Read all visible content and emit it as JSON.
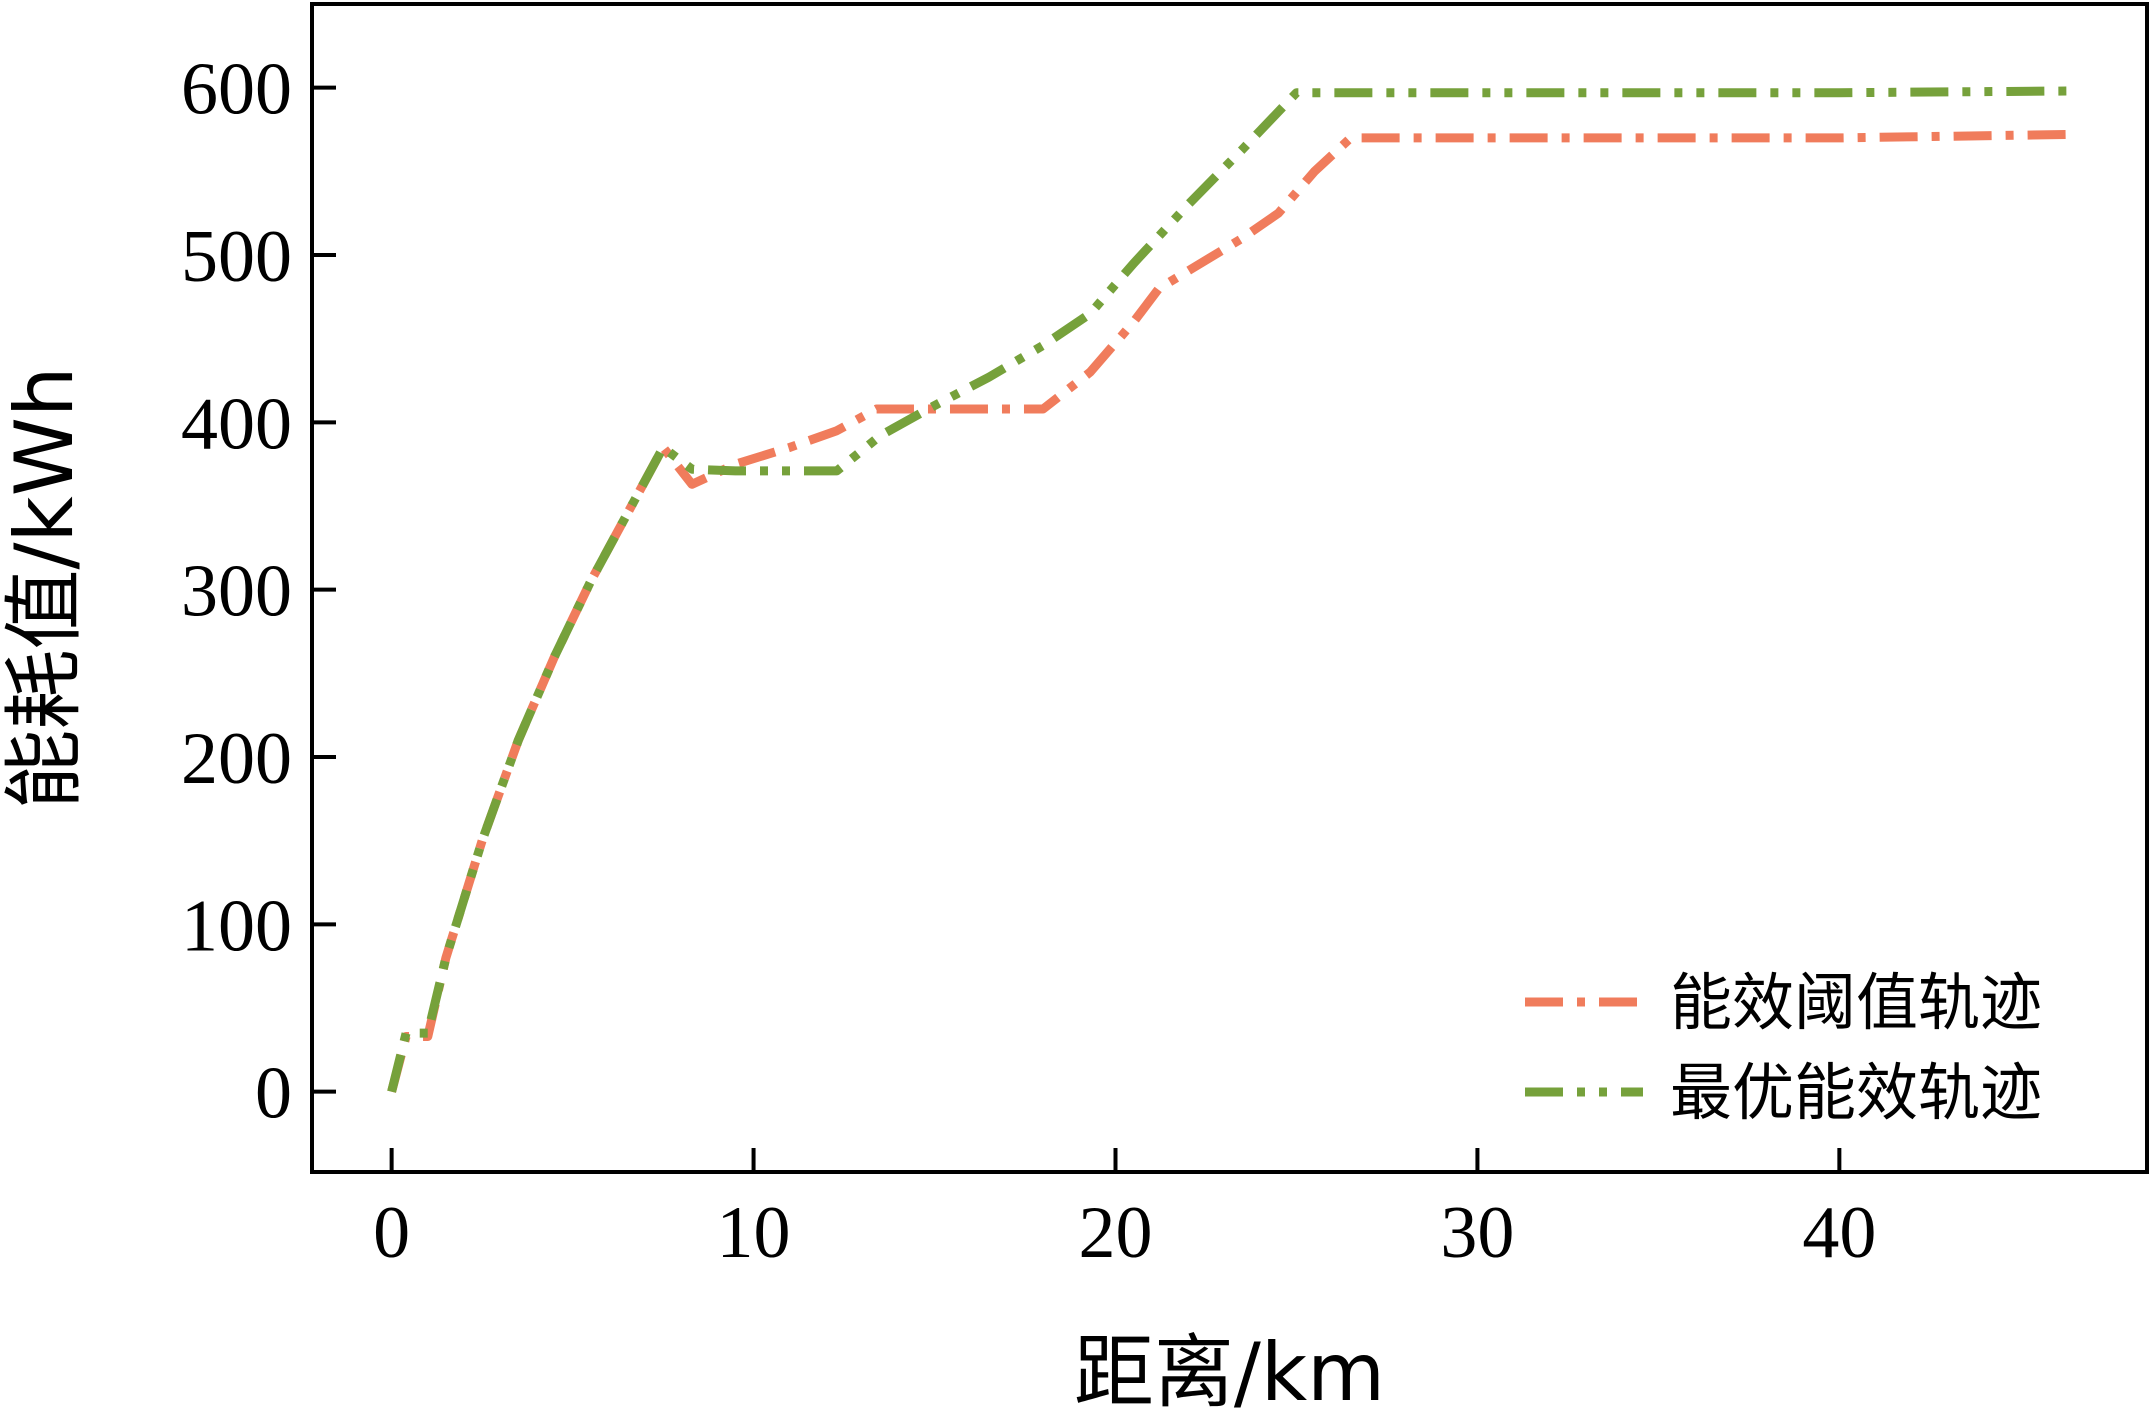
{
  "chart_data": {
    "type": "line",
    "xlabel": "距离/km",
    "ylabel": "能耗值/kWh",
    "xlim": [
      -2.2,
      48.5
    ],
    "ylim": [
      -48,
      650
    ],
    "xticks": [
      0,
      10,
      20,
      30,
      40
    ],
    "yticks": [
      0,
      100,
      200,
      300,
      400,
      500,
      600
    ],
    "grid": false,
    "legend_position": "bottom-right",
    "series": [
      {
        "name": "能效阈值轨迹",
        "color": "#F07C5C",
        "dash": "dash-dot",
        "x": [
          0,
          0.4,
          1.0,
          1.5,
          2.5,
          3.5,
          4.5,
          5.5,
          6.5,
          7.5,
          8.3,
          9.5,
          11.0,
          12.3,
          13.4,
          14.5,
          16.0,
          18.0,
          19.3,
          20.5,
          21.2,
          22.2,
          23.5,
          24.5,
          25.5,
          26.5,
          30,
          35,
          40,
          46.3
        ],
        "y": [
          0,
          33,
          33,
          80,
          150,
          210,
          260,
          305,
          345,
          385,
          363,
          375,
          385,
          395,
          408,
          408,
          408,
          408,
          430,
          460,
          480,
          493,
          510,
          525,
          550,
          570,
          570,
          570,
          570,
          572
        ]
      },
      {
        "name": "最优能效轨迹",
        "color": "#76A13B",
        "dash": "dash-dot-dot",
        "x": [
          0,
          0.4,
          1.0,
          1.5,
          2.5,
          3.5,
          4.5,
          5.5,
          6.5,
          7.5,
          8.3,
          9.5,
          11.0,
          12.3,
          13.5,
          15.0,
          16.5,
          18.0,
          19.3,
          20.5,
          22.0,
          23.5,
          25.0,
          26.5,
          30,
          35,
          40,
          46.3
        ],
        "y": [
          0,
          35,
          35,
          80,
          150,
          210,
          260,
          305,
          345,
          385,
          372,
          371,
          371,
          371,
          392,
          410,
          427,
          446,
          465,
          495,
          530,
          563,
          597,
          597,
          597,
          597,
          597,
          598
        ]
      }
    ]
  }
}
